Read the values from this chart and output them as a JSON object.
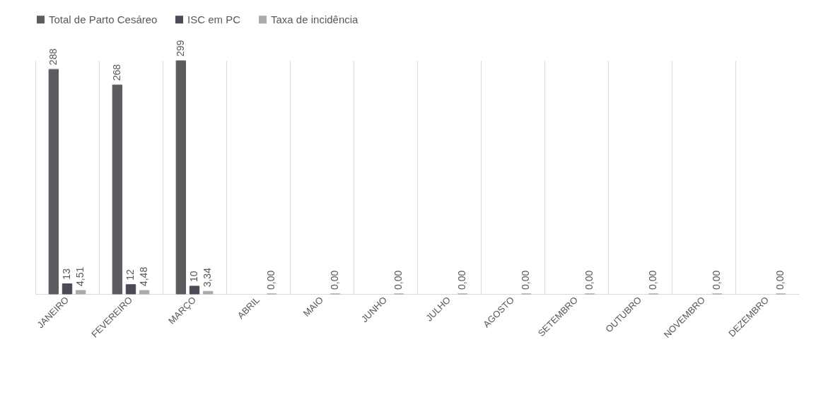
{
  "chart_data": {
    "type": "bar",
    "categories": [
      "JANEIRO",
      "FEVEREIRO",
      "MARÇO",
      "ABRIL",
      "MAIO",
      "JUNHO",
      "JULHO",
      "AGOSTO",
      "SETEMBRO",
      "OUTUBRO",
      "NOVEMBRO",
      "DEZEMBRO"
    ],
    "series": [
      {
        "name": "Total de Parto Cesáreo",
        "color": "#5b5b60",
        "values": [
          288,
          268,
          299,
          null,
          null,
          null,
          null,
          null,
          null,
          null,
          null,
          null
        ],
        "value_labels": [
          "288",
          "268",
          "299",
          null,
          null,
          null,
          null,
          null,
          null,
          null,
          null,
          null
        ]
      },
      {
        "name": "ISC em PC",
        "color": "#4b4b58",
        "values": [
          13,
          12,
          10,
          null,
          null,
          null,
          null,
          null,
          null,
          null,
          null,
          null
        ],
        "value_labels": [
          "13",
          "12",
          "10",
          null,
          null,
          null,
          null,
          null,
          null,
          null,
          null,
          null
        ]
      },
      {
        "name": "Taxa de incidência",
        "color": "#a9a9ae",
        "values": [
          4.51,
          4.48,
          3.34,
          0,
          0,
          0,
          0,
          0,
          0,
          0,
          0,
          0
        ],
        "value_labels": [
          "4,51",
          "4,48",
          "3,34",
          "0,00",
          "0,00",
          "0,00",
          "0,00",
          "0,00",
          "0,00",
          "0,00",
          "0,00",
          "0,00"
        ]
      }
    ],
    "grid": "x",
    "legend": "top",
    "tick_labels": "x"
  }
}
